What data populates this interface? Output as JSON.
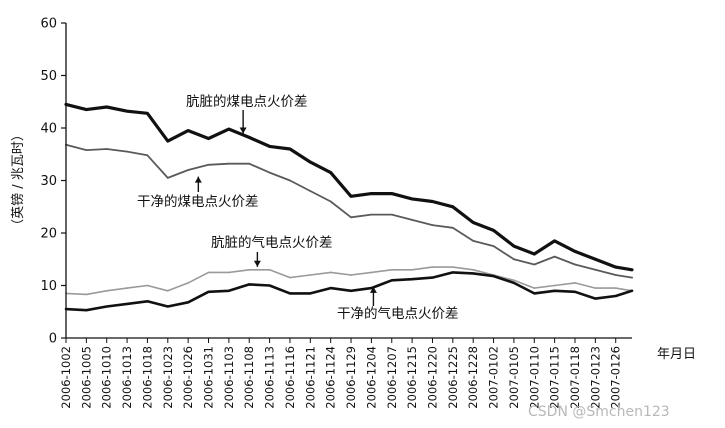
{
  "chart_data": {
    "type": "line",
    "ylabel": "（英镑 / 兆瓦时）",
    "xlabel": "年月日",
    "ylim": [
      0,
      60
    ],
    "yticks": [
      0,
      10,
      20,
      30,
      40,
      50,
      60
    ],
    "categories": [
      "2006-1002",
      "2006-1005",
      "2006-1010",
      "2006-1013",
      "2006-1018",
      "2006-1023",
      "2006-1026",
      "2006-1031",
      "2006-1103",
      "2006-1108",
      "2006-1113",
      "2006-1116",
      "2006-1121",
      "2006-1124",
      "2006-1129",
      "2006-1204",
      "2006-1207",
      "2006-1215",
      "2006-1220",
      "2006-1225",
      "2006-1228",
      "2007-0102",
      "2007-0105",
      "2007-0110",
      "2007-0115",
      "2007-0118",
      "2007-0123",
      "2007-0126"
    ],
    "x": [
      0,
      1,
      2,
      3,
      4,
      5,
      6,
      7,
      8,
      9,
      10,
      11,
      12,
      13,
      14,
      15,
      16,
      17,
      18,
      19,
      20,
      21,
      22,
      23,
      24,
      25,
      26,
      27,
      27.8
    ],
    "series": [
      {
        "name": "肮脏的煤电点火价差",
        "color": "#111111",
        "width": 3.2,
        "values": [
          44.5,
          43.5,
          44.0,
          43.2,
          42.8,
          37.5,
          39.5,
          38.0,
          39.8,
          38.2,
          36.5,
          36.0,
          33.5,
          31.5,
          27.0,
          27.5,
          27.5,
          26.5,
          26.0,
          25.0,
          22.0,
          20.5,
          17.5,
          16.0,
          18.5,
          16.5,
          15.0,
          13.5,
          13.0
        ]
      },
      {
        "name": "干净的煤电点火价差",
        "color": "#5a5a5a",
        "width": 1.8,
        "values": [
          36.8,
          35.8,
          36.0,
          35.5,
          34.8,
          30.5,
          32.0,
          33.0,
          33.2,
          33.2,
          31.5,
          30.0,
          28.0,
          26.0,
          23.0,
          23.5,
          23.5,
          22.5,
          21.5,
          21.0,
          18.5,
          17.5,
          15.0,
          14.0,
          15.5,
          14.0,
          13.0,
          12.0,
          11.5
        ]
      },
      {
        "name": "肮脏的气电点火价差",
        "color": "#9a9a9a",
        "width": 1.6,
        "values": [
          8.5,
          8.3,
          9.0,
          9.5,
          10.0,
          9.0,
          10.5,
          12.5,
          12.5,
          13.0,
          13.0,
          11.5,
          12.0,
          12.5,
          12.0,
          12.5,
          13.0,
          13.0,
          13.5,
          13.5,
          13.0,
          12.0,
          11.0,
          9.5,
          10.0,
          10.5,
          9.5,
          9.5,
          9.0
        ]
      },
      {
        "name": "干净的气电点火价差",
        "color": "#111111",
        "width": 2.6,
        "values": [
          5.5,
          5.3,
          6.0,
          6.5,
          7.0,
          6.0,
          6.8,
          8.8,
          9.0,
          10.2,
          10.0,
          8.5,
          8.5,
          9.5,
          9.0,
          9.5,
          11.0,
          11.2,
          11.5,
          12.5,
          12.3,
          11.8,
          10.5,
          8.5,
          9.0,
          8.8,
          7.5,
          8.0,
          9.0
        ]
      }
    ],
    "annotations": [
      {
        "text": "肮脏的煤电点火价差",
        "target_series": 0,
        "x": 8.7,
        "y": 38.2
      },
      {
        "text": "干净的煤电点火价差",
        "target_series": 1,
        "x": 6.5,
        "y": 31.5
      },
      {
        "text": "肮脏的气电点火价差",
        "target_series": 2,
        "x": 9.4,
        "y": 12.8
      },
      {
        "text": "干净的气电点火价差",
        "target_series": 3,
        "x": 15.1,
        "y": 10.5
      }
    ],
    "grid": false,
    "legend": "none"
  },
  "watermark": "CSDN @Smchen123"
}
